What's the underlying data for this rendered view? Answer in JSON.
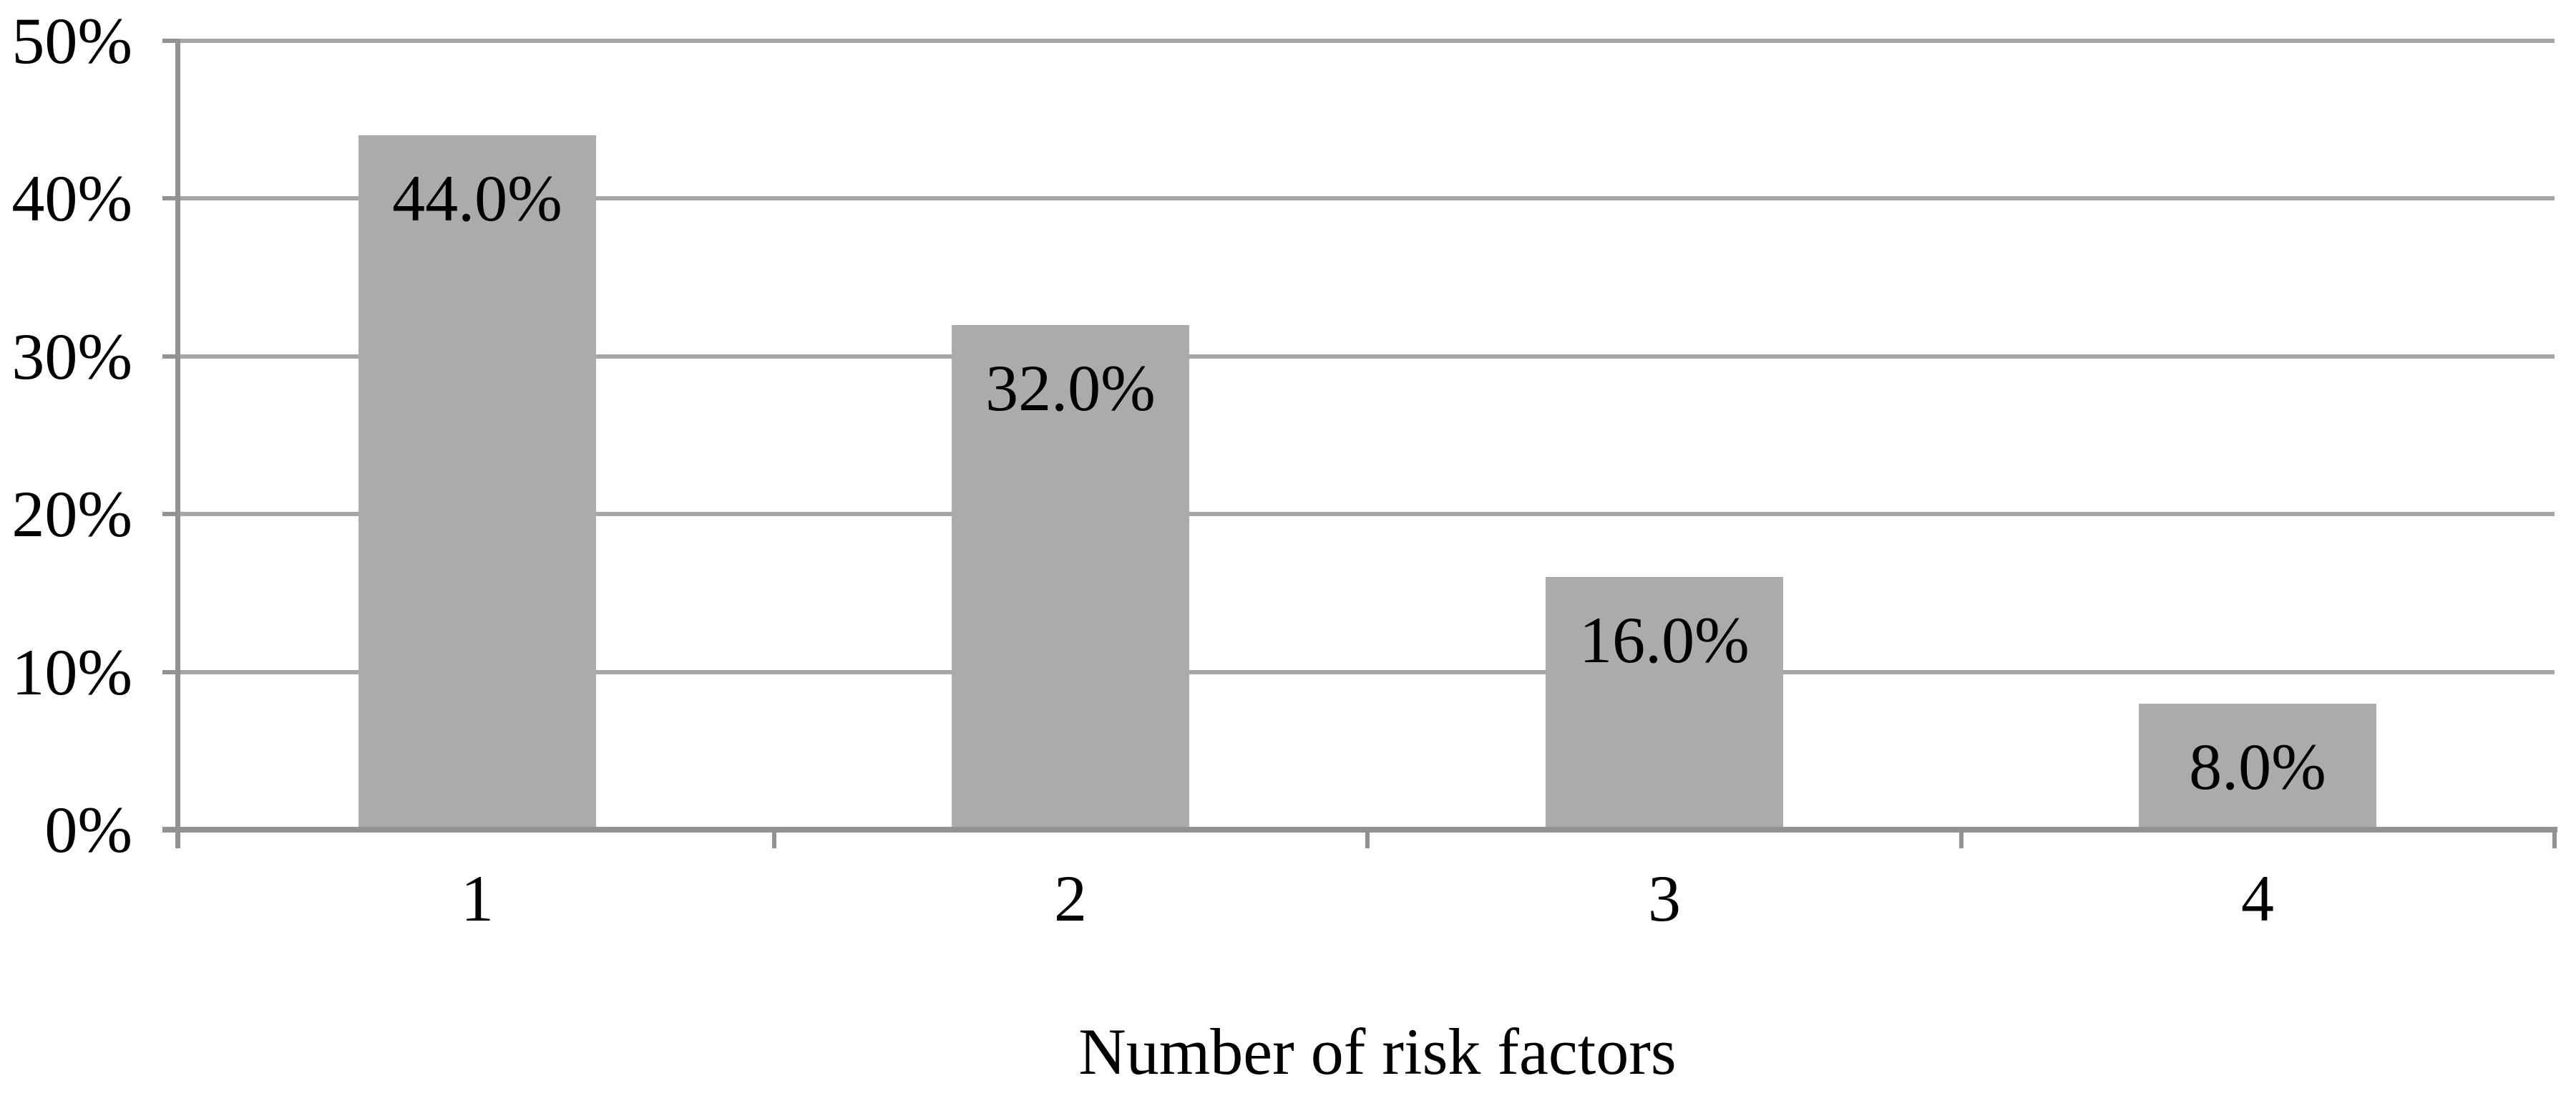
{
  "chart_data": {
    "type": "bar",
    "title": "",
    "xlabel": "Number of risk factors",
    "ylabel": "",
    "categories": [
      "1",
      "2",
      "3",
      "4"
    ],
    "values": [
      44.0,
      32.0,
      16.0,
      8.0
    ],
    "bar_labels": [
      "44.0%",
      "32.0%",
      "16.0%",
      "8.0%"
    ],
    "y_ticks": [
      {
        "value": 0,
        "label": "0%"
      },
      {
        "value": 10,
        "label": "10%"
      },
      {
        "value": 20,
        "label": "20%"
      },
      {
        "value": 30,
        "label": "30%"
      },
      {
        "value": 40,
        "label": "40%"
      },
      {
        "value": 50,
        "label": "50%"
      }
    ],
    "ylim": [
      0,
      50
    ],
    "grid": "horizontal",
    "legend": "none",
    "label_position": "inside-end",
    "colors": {
      "bar_fill": "#ABABAB",
      "gridline": "#A6A6A6",
      "axis": "#929292",
      "text": "#000000",
      "background": "#FFFFFF"
    }
  }
}
